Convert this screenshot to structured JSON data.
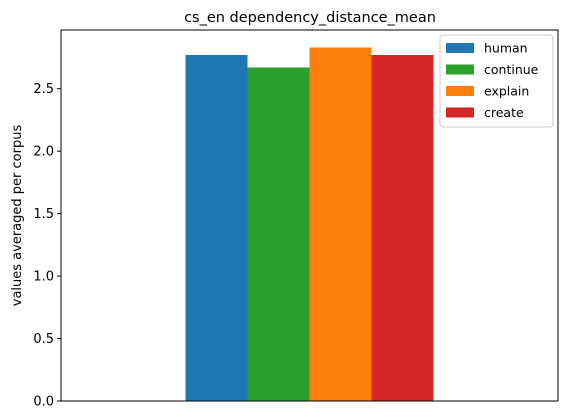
{
  "chart_data": {
    "type": "bar",
    "title": "cs_en dependency_distance_mean",
    "xlabel": "",
    "ylabel": "values averaged per corpus",
    "categories": [
      ""
    ],
    "ylim": [
      0,
      2.97
    ],
    "yticks": [
      "0.0",
      "0.5",
      "1.0",
      "1.5",
      "2.0",
      "2.5"
    ],
    "grid": false,
    "legend_position": "top-right",
    "series": [
      {
        "name": "human",
        "values": [
          2.77
        ],
        "color": "#1f77b4"
      },
      {
        "name": "continue",
        "values": [
          2.67
        ],
        "color": "#2ca02c"
      },
      {
        "name": "explain",
        "values": [
          2.83
        ],
        "color": "#ff7f0e"
      },
      {
        "name": "create",
        "values": [
          2.77
        ],
        "color": "#d62728"
      }
    ]
  }
}
